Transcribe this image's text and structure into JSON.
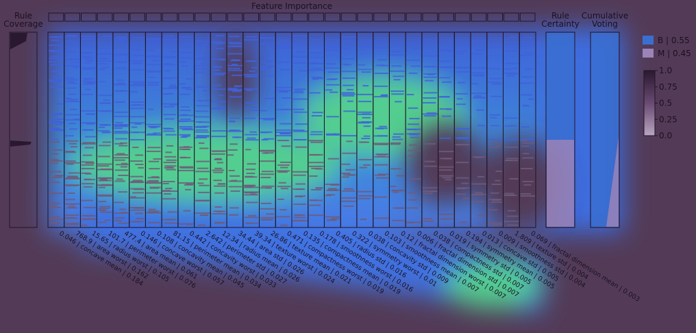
{
  "chart_data": {
    "type": "heatmap",
    "titles": {
      "feature_importance": "Feature Importance",
      "rule_coverage": [
        "Rule",
        "Coverage"
      ],
      "rule_certainty": [
        "Rule",
        "Certainty"
      ],
      "cumulative_voting": [
        "Cumulative",
        "Voting"
      ]
    },
    "classes": [
      {
        "name": "B",
        "proportion": "0.55",
        "label": "B | 0.55",
        "color": "#3a6fd0"
      },
      {
        "name": "M",
        "proportion": "0.45",
        "label": "M | 0.45",
        "color": "#9a84b8"
      }
    ],
    "colorbar": {
      "ticks": [
        "1.0",
        "0.75",
        "0.5",
        "0.25",
        "0.0"
      ],
      "range": [
        0,
        1
      ]
    },
    "features": [
      {
        "name": "concave mean",
        "importance": 0.046,
        "label": "0.046 | concave mean | 0.184"
      },
      {
        "name": "area worst",
        "importance": 768.9,
        "label": "768.9 | area worst | 0.162"
      },
      {
        "name": "radius worst",
        "importance": 15.65,
        "label": "15.65 | radius worst | 0.105"
      },
      {
        "name": "perimeter worst",
        "importance": 101.7,
        "label": "101.7 | perimeter worst | 0.076"
      },
      {
        "name": "area mean",
        "importance": 477.4,
        "label": "477.4 | area mean | 0.061"
      },
      {
        "name": "concave worst",
        "importance": 0.146,
        "label": "0.146 | concave worst | 0.057"
      },
      {
        "name": "concavity mean",
        "importance": 0.108,
        "label": "0.108 | concavity mean | 0.045"
      },
      {
        "name": "perimeter mean",
        "importance": 81.15,
        "label": "81.15 | perimeter mean | 0.034"
      },
      {
        "name": "concavity worst",
        "importance": 0.442,
        "label": "0.442 | concavity worst | 0.033"
      },
      {
        "name": "perimeter std",
        "importance": 2.642,
        "label": "2.642 | perimeter std | 0.027"
      },
      {
        "name": "radius mean",
        "importance": 12.34,
        "label": "12.34 | radius mean | 0.026"
      },
      {
        "name": "area std",
        "importance": 34.44,
        "label": "34.44 | area std | 0.026"
      },
      {
        "name": "texture worst",
        "importance": 39.34,
        "label": "39.34 | texture worst | 0.024"
      },
      {
        "name": "texture mean",
        "importance": 26.86,
        "label": "26.86 | texture mean | 0.021"
      },
      {
        "name": "compactness worst",
        "importance": 0.471,
        "label": "0.471 | compactness worst | 0.019"
      },
      {
        "name": "compactness mean",
        "importance": 0.135,
        "label": "0.135 | compactness mean | 0.019"
      },
      {
        "name": "smoothness worst",
        "importance": 0.178,
        "label": "0.178 | smoothness worst | 0.016"
      },
      {
        "name": "radius std",
        "importance": 0.405,
        "label": "0.405 | radius std | 0.016"
      },
      {
        "name": "symmetry worst",
        "importance": 0.322,
        "label": "0.322 | symmetry worst | 0.01"
      },
      {
        "name": "concavity std",
        "importance": 0.038,
        "label": "0.038 | concavity std | 0.009"
      },
      {
        "name": "smoothness mean",
        "importance": 0.103,
        "label": "0.103 | smoothness mean | 0.007"
      },
      {
        "name": "fractal dimension worst",
        "importance": 0.12,
        "label": "0.12 | fractal dimension worst | 0.007"
      },
      {
        "name": "fractal dimension std",
        "importance": 0.006,
        "label": "0.006 | fractal dimension std | 0.007"
      },
      {
        "name": "compactness std",
        "importance": 0.038,
        "label": "0.038 | compactness std | 0.007"
      },
      {
        "name": "symmetry std",
        "importance": 0.019,
        "label": "0.019 | symmetry std | 0.005"
      },
      {
        "name": "symmetry mean",
        "importance": 0.194,
        "label": "0.194 | symmetry mean | 0.005"
      },
      {
        "name": "concave std",
        "importance": 0.013,
        "label": "0.013 | concave std | 0.005"
      },
      {
        "name": "smoothness std",
        "importance": 0.009,
        "label": "0.009 | smoothness std | 0.004"
      },
      {
        "name": "texture std",
        "importance": 1.809,
        "label": "1.809 | texture std | 0.004"
      },
      {
        "name": "fractal dimension mean",
        "importance": 0.069,
        "label": "0.069 | fractal dimension mean | 0.003"
      }
    ]
  }
}
